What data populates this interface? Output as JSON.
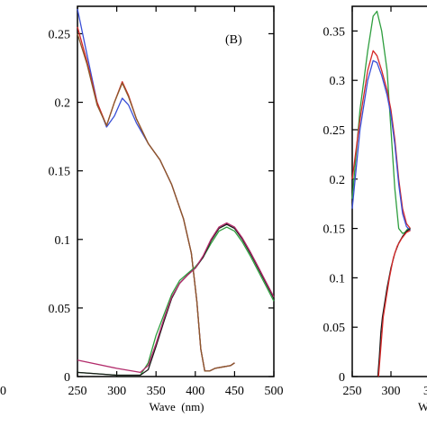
{
  "chart_data": [
    {
      "type": "line",
      "panel_label": "(B)",
      "xlabel": "Wave  (nm)",
      "ylabel": "",
      "xlim": [
        250,
        500
      ],
      "ylim": [
        0,
        0.27
      ],
      "x_ticks": [
        250,
        300,
        350,
        400,
        450,
        500
      ],
      "x_tick_labels": [
        "250",
        "300",
        "350",
        "400",
        "450",
        "500"
      ],
      "y_ticks": [
        0,
        0.05,
        0.1,
        0.15,
        0.2,
        0.25
      ],
      "y_tick_labels": [
        "0",
        "0.05",
        "0.1",
        "0.15",
        "0.2",
        "0.25"
      ],
      "grid": false,
      "legend": "none",
      "series": [
        {
          "color": "#3a4fd6",
          "x": [
            250,
            262,
            275,
            287,
            297,
            307,
            315,
            325,
            340,
            355,
            370,
            385,
            395,
            402,
            407,
            412,
            418,
            425,
            435,
            445,
            450
          ],
          "y": [
            0.268,
            0.235,
            0.2,
            0.182,
            0.19,
            0.203,
            0.198,
            0.185,
            0.17,
            0.158,
            0.14,
            0.115,
            0.09,
            0.055,
            0.02,
            0.004,
            0.004,
            0.006,
            0.007,
            0.008,
            0.01
          ]
        },
        {
          "color": "#d62828",
          "x": [
            250,
            262,
            275,
            287,
            297,
            307,
            315,
            325,
            340,
            355,
            370,
            385,
            395,
            402,
            407,
            412,
            418,
            425,
            435,
            445,
            450
          ],
          "y": [
            0.255,
            0.23,
            0.2,
            0.183,
            0.2,
            0.215,
            0.205,
            0.188,
            0.17,
            0.158,
            0.14,
            0.115,
            0.09,
            0.055,
            0.02,
            0.004,
            0.004,
            0.006,
            0.007,
            0.008,
            0.01
          ]
        },
        {
          "color": "#8a5a2b",
          "x": [
            250,
            262,
            275,
            287,
            297,
            307,
            315,
            325,
            340,
            355,
            370,
            385,
            395,
            402,
            407,
            412,
            418,
            425,
            435,
            445,
            450
          ],
          "y": [
            0.25,
            0.228,
            0.198,
            0.183,
            0.2,
            0.214,
            0.204,
            0.188,
            0.17,
            0.158,
            0.14,
            0.115,
            0.09,
            0.055,
            0.02,
            0.004,
            0.004,
            0.006,
            0.007,
            0.008,
            0.01
          ]
        },
        {
          "color": "#2e9e3e",
          "x": [
            250,
            300,
            330,
            340,
            350,
            360,
            370,
            380,
            390,
            400,
            410,
            420,
            430,
            440,
            450,
            460,
            470,
            480,
            490,
            500
          ],
          "y": [
            0.003,
            0.001,
            0.001,
            0.01,
            0.03,
            0.045,
            0.06,
            0.07,
            0.075,
            0.08,
            0.087,
            0.097,
            0.106,
            0.109,
            0.106,
            0.098,
            0.088,
            0.077,
            0.066,
            0.055
          ]
        },
        {
          "color": "#1a1a1a",
          "x": [
            250,
            300,
            330,
            340,
            350,
            360,
            370,
            380,
            390,
            400,
            410,
            420,
            430,
            440,
            450,
            460,
            470,
            480,
            490,
            500
          ],
          "y": [
            0.003,
            0.001,
            0.001,
            0.005,
            0.022,
            0.04,
            0.057,
            0.068,
            0.074,
            0.079,
            0.087,
            0.099,
            0.108,
            0.111,
            0.108,
            0.1,
            0.09,
            0.079,
            0.068,
            0.057
          ]
        },
        {
          "color": "#b22b6b",
          "x": [
            250,
            300,
            330,
            340,
            350,
            360,
            370,
            380,
            390,
            400,
            410,
            420,
            430,
            440,
            450,
            460,
            470,
            480,
            490,
            500
          ],
          "y": [
            0.012,
            0.006,
            0.003,
            0.008,
            0.024,
            0.042,
            0.058,
            0.068,
            0.074,
            0.079,
            0.088,
            0.1,
            0.109,
            0.112,
            0.109,
            0.101,
            0.091,
            0.08,
            0.069,
            0.058
          ]
        }
      ]
    },
    {
      "type": "line",
      "xlim": [
        250,
        325
      ],
      "ylim": [
        0,
        0.375
      ],
      "x_ticks": [
        250,
        300
      ],
      "x_tick_labels": [
        "250",
        "300"
      ],
      "y_ticks": [
        0,
        0.05,
        0.1,
        0.15,
        0.2,
        0.25,
        0.3,
        0.35
      ],
      "y_tick_labels": [
        "0",
        "0.05",
        "0.1",
        "0.15",
        "0.2",
        "0.25",
        "0.3",
        "0.35"
      ],
      "grid": false,
      "legend": "none",
      "series": [
        {
          "color": "#2e9e3e",
          "x": [
            250,
            260,
            270,
            277,
            282,
            288,
            295,
            300,
            305,
            310,
            315,
            318,
            322,
            325
          ],
          "y": [
            0.18,
            0.27,
            0.33,
            0.365,
            0.37,
            0.35,
            0.31,
            0.25,
            0.19,
            0.15,
            0.145,
            0.146,
            0.15,
            0.149
          ]
        },
        {
          "color": "#d62828",
          "x": [
            250,
            260,
            270,
            277,
            282,
            288,
            295,
            300,
            305,
            310,
            315,
            320,
            325
          ],
          "y": [
            0.2,
            0.26,
            0.31,
            0.33,
            0.325,
            0.31,
            0.29,
            0.27,
            0.24,
            0.2,
            0.17,
            0.155,
            0.15
          ]
        },
        {
          "color": "#3a4fd6",
          "x": [
            250,
            260,
            270,
            277,
            282,
            288,
            295,
            300,
            305,
            310,
            315,
            320,
            325
          ],
          "y": [
            0.17,
            0.25,
            0.3,
            0.32,
            0.318,
            0.305,
            0.285,
            0.265,
            0.235,
            0.195,
            0.165,
            0.152,
            0.148
          ]
        },
        {
          "color": "#1a1a1a",
          "x": [
            283,
            285,
            287,
            289,
            292,
            295,
            300,
            305,
            310,
            315,
            320,
            325
          ],
          "y": [
            0.0,
            0.02,
            0.045,
            0.06,
            0.075,
            0.09,
            0.11,
            0.125,
            0.135,
            0.142,
            0.147,
            0.15
          ]
        },
        {
          "color": "#d62828",
          "x": [
            284,
            287,
            290,
            294,
            298,
            303,
            308,
            314,
            320,
            325
          ],
          "y": [
            0.0,
            0.03,
            0.06,
            0.08,
            0.1,
            0.12,
            0.132,
            0.14,
            0.146,
            0.148
          ]
        }
      ]
    }
  ],
  "right_axis_fragment": {
    "xlabel_visible": "W",
    "xtick_partial": "3"
  },
  "left_fragment_tick": "0"
}
